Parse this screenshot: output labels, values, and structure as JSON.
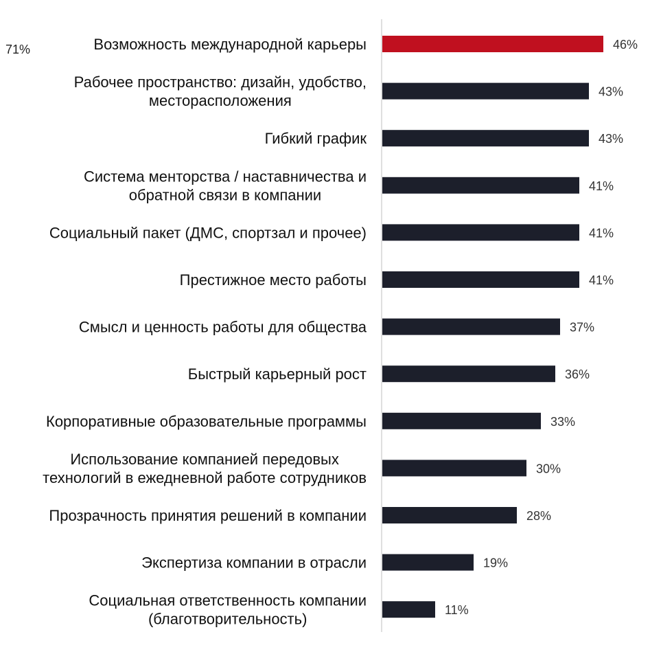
{
  "stray_label": "71%",
  "colors": {
    "highlight": "#c0101f",
    "bar": "#1c1f2b",
    "axis": "#bfbfbf"
  },
  "chart_data": {
    "type": "bar",
    "orientation": "horizontal",
    "title": "",
    "xlabel": "",
    "ylabel": "",
    "xlim": [
      0,
      50
    ],
    "grid": false,
    "legend": "none",
    "value_suffix": "%",
    "categories": [
      "Возможность международной карьеры",
      "Рабочее пространство: дизайн, удобство, месторасположения",
      "Гибкий график",
      "Система менторства / наставничества и обратной связи в компании",
      "Социальный пакет (ДМС, спортзал и прочее)",
      "Престижное место работы",
      "Смысл и ценность работы для общества",
      "Быстрый карьерный рост",
      "Корпоративные образовательные программы",
      "Использование компанией передовых технологий в ежедневной работе сотрудников",
      "Прозрачность принятия решений в компании",
      "Экспертиза компании в отрасли",
      "Социальная ответственность компании (благотворительность)"
    ],
    "label_lines": [
      [
        "Возможность международной карьеры"
      ],
      [
        "Рабочее пространство: дизайн, удобство,",
        "месторасположения"
      ],
      [
        "Гибкий график"
      ],
      [
        "Система менторства / наставничества и",
        "обратной связи в компании"
      ],
      [
        "Социальный пакет (ДМС, спортзал и прочее)"
      ],
      [
        "Престижное место работы"
      ],
      [
        "Смысл и ценность работы для общества"
      ],
      [
        "Быстрый карьерный рост"
      ],
      [
        "Корпоративные образовательные программы"
      ],
      [
        "Использование компанией передовых",
        "технологий в ежедневной работе сотрудников"
      ],
      [
        "Прозрачность принятия решений в компании"
      ],
      [
        "Экспертиза компании в отрасли"
      ],
      [
        "Социальная ответственность компании",
        "(благотворительность)"
      ]
    ],
    "values": [
      46,
      43,
      43,
      41,
      41,
      41,
      37,
      36,
      33,
      30,
      28,
      19,
      11
    ],
    "highlight_index": 0
  }
}
